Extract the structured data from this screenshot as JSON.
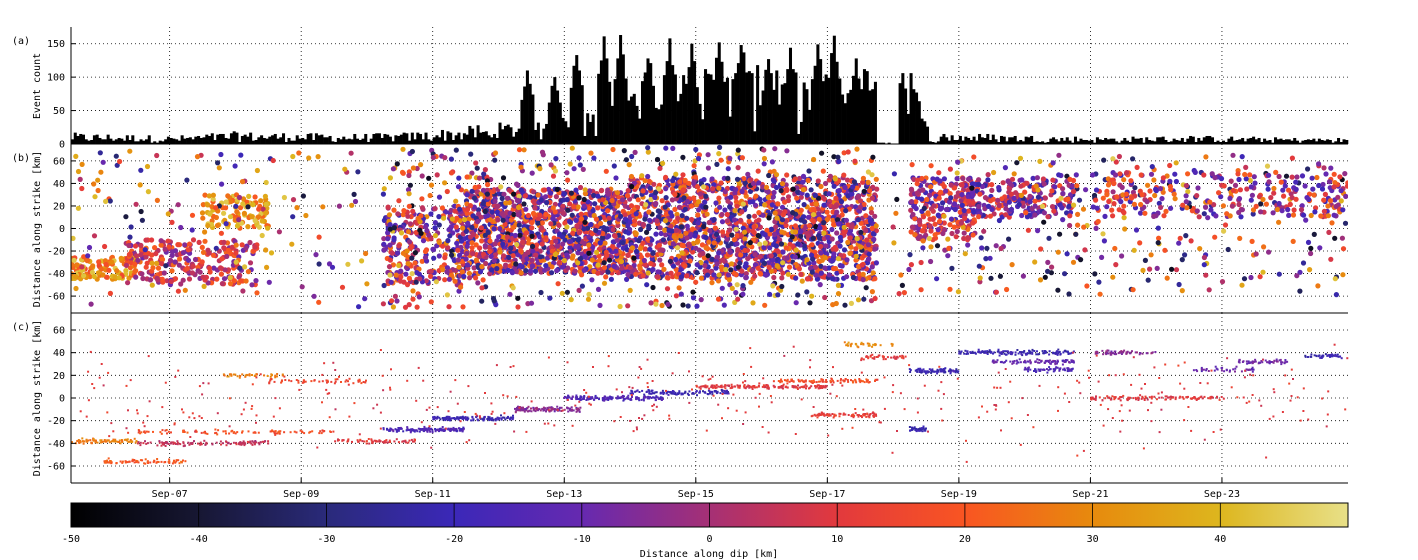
{
  "chart_data": [
    {
      "panel_label": "(a)",
      "type": "bar",
      "ylabel": "Event count",
      "ylim": [
        0,
        175
      ],
      "yticks": [
        0,
        50,
        100,
        150
      ],
      "xlim": [
        "Sep-05 12:00",
        "Sep-24 22:00"
      ],
      "grid": true,
      "bin_hours": 1,
      "envelope_points": [
        [
          0,
          14
        ],
        [
          24,
          12
        ],
        [
          36,
          10
        ],
        [
          60,
          16
        ],
        [
          72,
          15
        ],
        [
          96,
          13
        ],
        [
          120,
          14
        ],
        [
          144,
          22
        ],
        [
          156,
          30
        ],
        [
          168,
          38
        ],
        [
          180,
          42
        ],
        [
          192,
          52
        ],
        [
          204,
          75
        ],
        [
          216,
          95
        ],
        [
          228,
          115
        ],
        [
          240,
          110
        ],
        [
          252,
          120
        ],
        [
          264,
          108
        ],
        [
          276,
          105
        ],
        [
          288,
          118
        ],
        [
          300,
          112
        ],
        [
          306,
          108
        ],
        [
          314,
          4
        ],
        [
          318,
          14
        ],
        [
          336,
          13
        ],
        [
          360,
          10
        ],
        [
          384,
          9
        ],
        [
          408,
          11
        ],
        [
          432,
          9
        ],
        [
          456,
          8
        ],
        [
          468,
          7
        ]
      ],
      "peaks": [
        [
          "Sep-11 20:00",
          92
        ],
        [
          "Sep-12 10:00",
          120
        ],
        [
          "Sep-12 20:00",
          112
        ],
        [
          "Sep-13 04:00",
          150
        ],
        [
          "Sep-13 14:00",
          170
        ],
        [
          "Sep-13 20:00",
          168
        ],
        [
          "Sep-14 06:00",
          150
        ],
        [
          "Sep-14 14:00",
          168
        ],
        [
          "Sep-14 22:00",
          155
        ],
        [
          "Sep-15 08:00",
          162
        ],
        [
          "Sep-15 16:00",
          170
        ],
        [
          "Sep-16 02:00",
          142
        ],
        [
          "Sep-16 10:00",
          148
        ],
        [
          "Sep-16 20:00",
          158
        ],
        [
          "Sep-17 02:00",
          168
        ],
        [
          "Sep-17 10:00",
          132
        ],
        [
          "Sep-17 18:00",
          128
        ]
      ],
      "gap": [
        "Sep-17 18:00",
        "Sep-18 02:00"
      ]
    },
    {
      "panel_label": "(b)",
      "type": "scatter",
      "ylabel": "Distance along strike [km]",
      "ylim": [
        -75,
        75
      ],
      "yticks": [
        -60,
        -40,
        -20,
        0,
        20,
        40,
        60
      ],
      "grid": true,
      "color_by": "Distance along dip [km]",
      "clusters": [
        {
          "t": [
            "Sep-05 12:00",
            "Sep-06 12:00"
          ],
          "y": [
            -45,
            -25
          ],
          "d": [
            15,
            45
          ],
          "n": 120
        },
        {
          "t": [
            "Sep-06 08:00",
            "Sep-08 08:00"
          ],
          "y": [
            -50,
            -10
          ],
          "d": [
            -10,
            25
          ],
          "n": 240
        },
        {
          "t": [
            "Sep-07 12:00",
            "Sep-08 12:00"
          ],
          "y": [
            0,
            30
          ],
          "d": [
            20,
            45
          ],
          "n": 110
        },
        {
          "t": [
            "Sep-05 12:00",
            "Sep-10 00:00"
          ],
          "y": [
            -70,
            70
          ],
          "d": [
            -40,
            45
          ],
          "n": 140
        },
        {
          "t": [
            "Sep-10 06:00",
            "Sep-11 12:00"
          ],
          "y": [
            -50,
            20
          ],
          "d": [
            -25,
            30
          ],
          "n": 260
        },
        {
          "t": [
            "Sep-11 12:00",
            "Sep-14 00:00"
          ],
          "y": [
            -40,
            35
          ],
          "d": [
            -30,
            30
          ],
          "n": 1100
        },
        {
          "t": [
            "Sep-14 00:00",
            "Sep-17 18:00"
          ],
          "y": [
            -45,
            45
          ],
          "d": [
            -30,
            30
          ],
          "n": 1500
        },
        {
          "t": [
            "Sep-10 06:00",
            "Sep-17 18:00"
          ],
          "y": [
            -70,
            72
          ],
          "d": [
            -45,
            45
          ],
          "n": 700
        },
        {
          "t": [
            "Sep-18 06:00",
            "Sep-19 06:00"
          ],
          "y": [
            -10,
            45
          ],
          "d": [
            -20,
            25
          ],
          "n": 200
        },
        {
          "t": [
            "Sep-19 00:00",
            "Sep-20 18:00"
          ],
          "y": [
            10,
            45
          ],
          "d": [
            -25,
            20
          ],
          "n": 220
        },
        {
          "t": [
            "Sep-18 00:00",
            "Sep-24 22:00"
          ],
          "y": [
            -60,
            65
          ],
          "d": [
            -45,
            45
          ],
          "n": 330
        },
        {
          "t": [
            "Sep-21 00:00",
            "Sep-24 22:00"
          ],
          "y": [
            10,
            50
          ],
          "d": [
            -20,
            30
          ],
          "n": 260
        }
      ]
    },
    {
      "panel_label": "(c)",
      "type": "scatter",
      "ylabel": "Distance along strike [km]",
      "ylim": [
        -75,
        75
      ],
      "yticks": [
        -60,
        -40,
        -20,
        0,
        20,
        40,
        60
      ],
      "grid": true,
      "color_by": "Distance along dip [km]",
      "streaks": [
        {
          "t": [
            "Sep-05 12:00",
            "Sep-06 12:00"
          ],
          "y": -38,
          "d": 28,
          "n": 80
        },
        {
          "t": [
            "Sep-06 00:00",
            "Sep-07 06:00"
          ],
          "y": -56,
          "d": 20,
          "n": 70
        },
        {
          "t": [
            "Sep-06 12:00",
            "Sep-08 12:00"
          ],
          "y": -40,
          "d": 5,
          "n": 120
        },
        {
          "t": [
            "Sep-06 12:00",
            "Sep-09 12:00"
          ],
          "y": -30,
          "d": 18,
          "n": 90
        },
        {
          "t": [
            "Sep-07 18:00",
            "Sep-08 18:00"
          ],
          "y": 20,
          "d": 28,
          "n": 40
        },
        {
          "t": [
            "Sep-08 12:00",
            "Sep-10 00:00"
          ],
          "y": 15,
          "d": 15,
          "n": 50
        },
        {
          "t": [
            "Sep-09 12:00",
            "Sep-10 18:00"
          ],
          "y": -38,
          "d": 10,
          "n": 60
        },
        {
          "t": [
            "Sep-10 06:00",
            "Sep-11 12:00"
          ],
          "y": -28,
          "d": -15,
          "n": 140
        },
        {
          "t": [
            "Sep-11 00:00",
            "Sep-12 06:00"
          ],
          "y": -18,
          "d": -20,
          "n": 130
        },
        {
          "t": [
            "Sep-12 06:00",
            "Sep-13 06:00"
          ],
          "y": -10,
          "d": -5,
          "n": 120
        },
        {
          "t": [
            "Sep-13 00:00",
            "Sep-14 12:00"
          ],
          "y": 0,
          "d": -15,
          "n": 160
        },
        {
          "t": [
            "Sep-14 00:00",
            "Sep-15 12:00"
          ],
          "y": 5,
          "d": -20,
          "n": 120
        },
        {
          "t": [
            "Sep-15 00:00",
            "Sep-17 00:00"
          ],
          "y": 10,
          "d": 10,
          "n": 160
        },
        {
          "t": [
            "Sep-16 06:00",
            "Sep-17 18:00"
          ],
          "y": 15,
          "d": 18,
          "n": 90
        },
        {
          "t": [
            "Sep-16 18:00",
            "Sep-17 18:00"
          ],
          "y": -15,
          "d": 12,
          "n": 80
        },
        {
          "t": [
            "Sep-17 06:00",
            "Sep-18 00:00"
          ],
          "y": 47,
          "d": 30,
          "n": 30
        },
        {
          "t": [
            "Sep-17 12:00",
            "Sep-18 06:00"
          ],
          "y": 36,
          "d": 12,
          "n": 40
        },
        {
          "t": [
            "Sep-18 06:00",
            "Sep-19 00:00"
          ],
          "y": 24,
          "d": -20,
          "n": 80
        },
        {
          "t": [
            "Sep-18 06:00",
            "Sep-18 12:00"
          ],
          "y": -28,
          "d": -22,
          "n": 40
        },
        {
          "t": [
            "Sep-19 00:00",
            "Sep-20 18:00"
          ],
          "y": 40,
          "d": -20,
          "n": 140
        },
        {
          "t": [
            "Sep-19 12:00",
            "Sep-20 18:00"
          ],
          "y": 32,
          "d": -10,
          "n": 90
        },
        {
          "t": [
            "Sep-20 00:00",
            "Sep-20 18:00"
          ],
          "y": 25,
          "d": -15,
          "n": 60
        },
        {
          "t": [
            "Sep-21 00:00",
            "Sep-22 00:00"
          ],
          "y": 40,
          "d": -5,
          "n": 60
        },
        {
          "t": [
            "Sep-21 00:00",
            "Sep-23 00:00"
          ],
          "y": 0,
          "d": 10,
          "n": 110
        },
        {
          "t": [
            "Sep-22 12:00",
            "Sep-23 12:00"
          ],
          "y": 25,
          "d": -10,
          "n": 40
        },
        {
          "t": [
            "Sep-23 06:00",
            "Sep-24 00:00"
          ],
          "y": 32,
          "d": -8,
          "n": 50
        },
        {
          "t": [
            "Sep-24 06:00",
            "Sep-24 20:00"
          ],
          "y": 37,
          "d": -20,
          "n": 40
        },
        {
          "t": [
            "Sep-05 12:00",
            "Sep-24 22:00"
          ],
          "y": 0,
          "d": 10,
          "n": 380,
          "spread": 60
        }
      ]
    }
  ],
  "x_axis": {
    "ticks": [
      "Sep-07",
      "Sep-09",
      "Sep-11",
      "Sep-13",
      "Sep-15",
      "Sep-17",
      "Sep-19",
      "Sep-21",
      "Sep-23"
    ],
    "range": [
      "Sep-05 12:00",
      "Sep-24 22:00"
    ]
  },
  "colorbar": {
    "label": "Distance along dip [km]",
    "range": [
      -50,
      50
    ],
    "ticks": [
      -50,
      -40,
      -30,
      -20,
      -10,
      0,
      10,
      20,
      30,
      40
    ],
    "colors": [
      "#000000",
      "#171733",
      "#2a2a7a",
      "#3b28b8",
      "#6629b0",
      "#a53075",
      "#e2393d",
      "#f95522",
      "#e78a0d",
      "#ddb61e",
      "#e8e088"
    ]
  }
}
